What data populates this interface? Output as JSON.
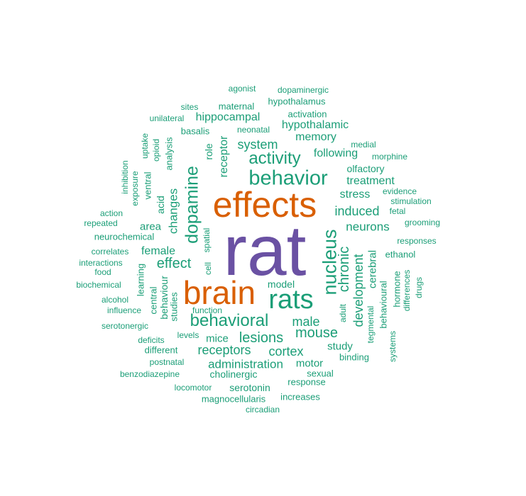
{
  "colors": {
    "largest": "#6a51a3",
    "large": "#d95f02",
    "other": "#1b9e77"
  },
  "words": [
    "rat",
    "effects",
    "brain",
    "rats",
    "behavior",
    "nucleus",
    "dopamine",
    "behavioral",
    "activity",
    "lesions",
    "mouse",
    "effect",
    "chronic",
    "development",
    "receptors",
    "male",
    "induced",
    "system",
    "cortex",
    "administration",
    "neurons",
    "changes",
    "hypothalamic",
    "female",
    "receptor",
    "memory",
    "following",
    "treatment",
    "stress",
    "hippocampal",
    "mice",
    "cerebral",
    "study",
    "motor",
    "area",
    "olfactory",
    "model",
    "cholinergic",
    "serotonin",
    "behaviour",
    "activation",
    "hypothalamus",
    "maternal",
    "binding",
    "sexual",
    "response",
    "role",
    "neurochemical",
    "dopaminergic",
    "basalis",
    "evidence",
    "ethanol",
    "central",
    "acid",
    "spatial",
    "agonist",
    "sites",
    "unilateral",
    "neonatal",
    "medial",
    "morphine",
    "stimulation",
    "fetal",
    "grooming",
    "responses",
    "hormone",
    "differences",
    "drugs",
    "behavioural",
    "tegmental",
    "systems",
    "adult",
    "function",
    "studies",
    "learning",
    "cell",
    "levels",
    "deficits",
    "different",
    "postnatal",
    "benzodiazepine",
    "locomotor",
    "magnocellularis",
    "increases",
    "circadian",
    "serotonergic",
    "influence",
    "alcohol",
    "biochemical",
    "food",
    "interactions",
    "correlates",
    "repeated",
    "action",
    "exposure",
    "inhibition",
    "ventral",
    "uptake",
    "opioid",
    "analysis"
  ]
}
